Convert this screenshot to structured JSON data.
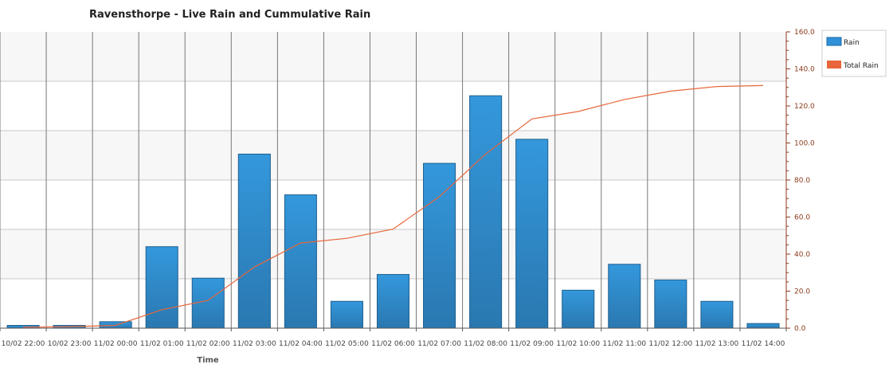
{
  "chart_data": {
    "type": "bar",
    "title": "Ravensthorpe - Live Rain and Cummulative Rain",
    "xlabel": "Time",
    "ylabel": "",
    "ylim": [
      0,
      160
    ],
    "yticks": [
      "0.0",
      "20.0",
      "40.0",
      "60.0",
      "80.0",
      "100.0",
      "120.0",
      "140.0",
      "160.0"
    ],
    "yaxis_position": "right",
    "grid": true,
    "legend_position": "top-right",
    "categories": [
      "10/02 22:00",
      "10/02 23:00",
      "11/02 00:00",
      "11/02 01:00",
      "11/02 02:00",
      "11/02 03:00",
      "11/02 04:00",
      "11/02 05:00",
      "11/02 06:00",
      "11/02 07:00",
      "11/02 08:00",
      "11/02 09:00",
      "11/02 10:00",
      "11/02 11:00",
      "11/02 12:00",
      "11/02 13:00",
      "11/02 14:00"
    ],
    "series": [
      {
        "name": "Rain",
        "type": "bar",
        "color": "#3090d8",
        "values": [
          1.5,
          1.5,
          3.5,
          44,
          27,
          94,
          72,
          14.5,
          29,
          89,
          125.5,
          102,
          20.5,
          34.5,
          26,
          14.5,
          2.5
        ]
      },
      {
        "name": "Total Rain",
        "type": "line",
        "color": "#e8663a",
        "values": [
          0.5,
          0.8,
          1.5,
          10,
          15,
          33,
          46,
          48.5,
          53.5,
          71,
          94,
          113,
          117,
          123.5,
          128,
          130.5,
          131
        ]
      }
    ]
  }
}
